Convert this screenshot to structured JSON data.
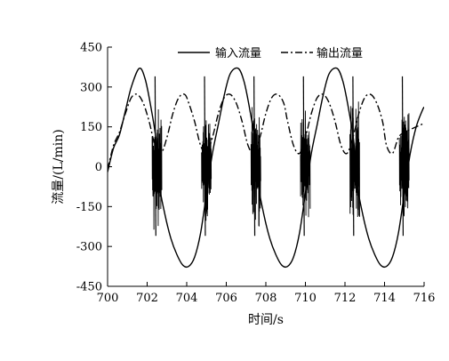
{
  "chart_data": {
    "type": "line",
    "title": "",
    "xlabel": "时间/s",
    "ylabel": "流量/(L/min)",
    "xlim": [
      700,
      716
    ],
    "ylim": [
      -450,
      450
    ],
    "xticks": [
      700,
      702,
      704,
      706,
      708,
      710,
      712,
      714,
      716
    ],
    "yticks": [
      450,
      300,
      150,
      0,
      -150,
      -300,
      -450
    ],
    "xtick_labels": [
      "700",
      "702",
      "704",
      "706",
      "708",
      "710",
      "712",
      "714",
      "716"
    ],
    "ytick_labels": [
      "450",
      "300",
      "150",
      "0",
      "-150",
      "-300",
      "-450"
    ],
    "legend_position": "top",
    "grid": false,
    "series": [
      {
        "name": "输入流量",
        "style": "solid",
        "color": "#000000",
        "x": [
          700.0,
          700.3,
          700.6,
          700.9,
          701.2,
          701.6,
          701.9,
          702.2,
          702.45,
          702.6,
          702.9,
          703.2,
          703.5,
          703.8,
          704.1,
          704.4,
          704.7,
          705.0,
          705.3,
          705.6,
          705.9,
          706.2,
          706.6,
          706.9,
          707.2,
          707.45,
          707.6,
          707.9,
          708.2,
          708.5,
          708.8,
          709.1,
          709.4,
          709.7,
          710.0,
          710.3,
          710.6,
          710.9,
          711.2,
          711.6,
          711.9,
          712.2,
          712.45,
          712.6,
          712.9,
          713.2,
          713.5,
          713.8,
          714.1,
          714.4,
          714.7,
          715.0,
          715.3,
          715.6,
          715.9,
          716.0
        ],
        "y": [
          -20,
          70,
          120,
          210,
          300,
          370,
          330,
          220,
          100,
          -60,
          -180,
          -270,
          -330,
          -370,
          -375,
          -340,
          -250,
          -100,
          50,
          160,
          270,
          350,
          370,
          320,
          210,
          90,
          -60,
          -180,
          -270,
          -330,
          -370,
          -375,
          -340,
          -250,
          -100,
          50,
          160,
          270,
          350,
          370,
          320,
          210,
          90,
          -60,
          -180,
          -270,
          -330,
          -370,
          -375,
          -340,
          -250,
          -100,
          50,
          150,
          210,
          225
        ]
      },
      {
        "name": "输出流量",
        "style": "dashdot",
        "color": "#000000",
        "x": [
          700.0,
          700.3,
          700.6,
          700.9,
          701.2,
          701.5,
          701.8,
          702.1,
          702.4,
          702.7,
          703.0,
          703.3,
          703.6,
          703.9,
          704.1,
          704.4,
          704.7,
          705.0,
          705.3,
          705.6,
          705.9,
          706.2,
          706.5,
          706.8,
          707.1,
          707.4,
          707.7,
          708.0,
          708.3,
          708.6,
          708.9,
          709.1,
          709.4,
          709.7,
          710.0,
          710.3,
          710.6,
          710.9,
          711.2,
          711.5,
          711.8,
          712.1,
          712.4,
          712.7,
          713.0,
          713.3,
          713.6,
          713.9,
          714.1,
          714.4,
          714.7,
          715.0,
          715.3,
          715.6,
          715.9,
          716.0
        ],
        "y": [
          -10,
          80,
          130,
          200,
          260,
          272,
          240,
          170,
          80,
          50,
          110,
          200,
          260,
          272,
          240,
          170,
          80,
          50,
          110,
          200,
          260,
          272,
          240,
          170,
          80,
          50,
          110,
          200,
          260,
          272,
          240,
          170,
          80,
          50,
          110,
          200,
          260,
          272,
          240,
          170,
          80,
          50,
          110,
          200,
          260,
          272,
          240,
          170,
          80,
          50,
          110,
          130,
          140,
          150,
          160,
          165
        ]
      }
    ],
    "disturbance_periods_s": [
      702.5,
      705.0,
      707.5,
      710.0,
      712.5,
      715.0
    ]
  }
}
